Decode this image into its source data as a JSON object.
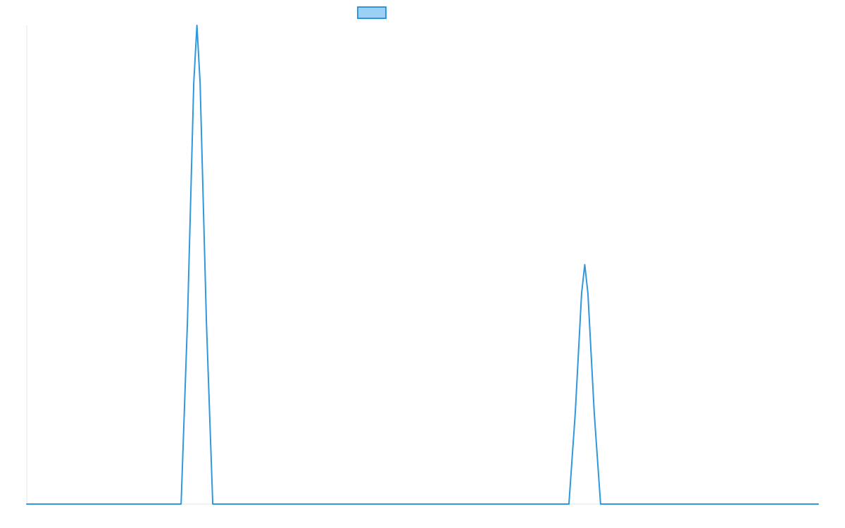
{
  "chart_data": {
    "type": "line",
    "title": "",
    "xlabel": "",
    "ylabel": "",
    "xlim": [
      0,
      100
    ],
    "ylim": [
      0,
      100
    ],
    "grid": false,
    "legend": {
      "position": "top-center",
      "swatch_fill": "#9cd0f5",
      "swatch_stroke": "#2f98dc"
    },
    "series": [
      {
        "color": "#2f98dc",
        "x": [
          0,
          19.5,
          20.3,
          21.1,
          21.5,
          21.9,
          22.7,
          23.5,
          68.5,
          69.3,
          70.1,
          70.5,
          70.9,
          71.7,
          72.5,
          100
        ],
        "y": [
          0,
          0,
          38,
          88,
          100,
          88,
          38,
          0,
          0,
          19,
          44,
          50,
          44,
          19,
          0,
          0
        ]
      }
    ]
  }
}
